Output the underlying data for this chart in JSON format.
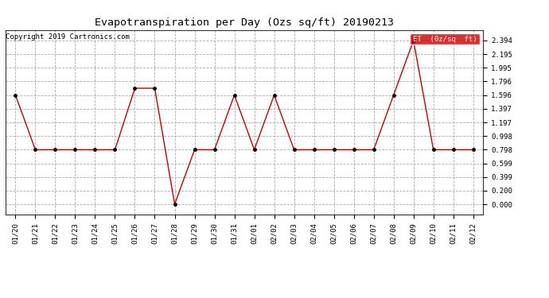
{
  "title": "Evapotranspiration per Day (Ozs sq/ft) 20190213",
  "copyright": "Copyright 2019 Cartronics.com",
  "x_labels": [
    "01/20",
    "01/21",
    "01/22",
    "01/23",
    "01/24",
    "01/25",
    "01/26",
    "01/27",
    "01/28",
    "01/29",
    "01/30",
    "01/31",
    "02/01",
    "02/02",
    "02/03",
    "02/04",
    "02/05",
    "02/06",
    "02/07",
    "02/08",
    "02/09",
    "02/10",
    "02/11",
    "02/12"
  ],
  "y_values": [
    1.596,
    0.798,
    0.798,
    0.798,
    0.798,
    0.798,
    1.696,
    1.696,
    0.0,
    0.798,
    0.798,
    1.596,
    0.798,
    1.596,
    0.798,
    0.798,
    0.798,
    0.798,
    0.798,
    1.596,
    2.394,
    0.798,
    0.798,
    0.798
  ],
  "line_color": "#cc0000",
  "marker_color": "#000000",
  "background_color": "#ffffff",
  "grid_color": "#aaaaaa",
  "y_ticks": [
    0.0,
    0.2,
    0.399,
    0.599,
    0.798,
    0.998,
    1.197,
    1.397,
    1.596,
    1.796,
    1.995,
    2.195,
    2.394
  ],
  "legend_label": "ET  (0z/sq  ft)",
  "legend_bg": "#cc0000",
  "legend_fg": "#ffffff",
  "ylim_min": -0.15,
  "ylim_max": 2.55,
  "title_fontsize": 9.5,
  "tick_fontsize": 6.5,
  "copyright_fontsize": 6.5
}
